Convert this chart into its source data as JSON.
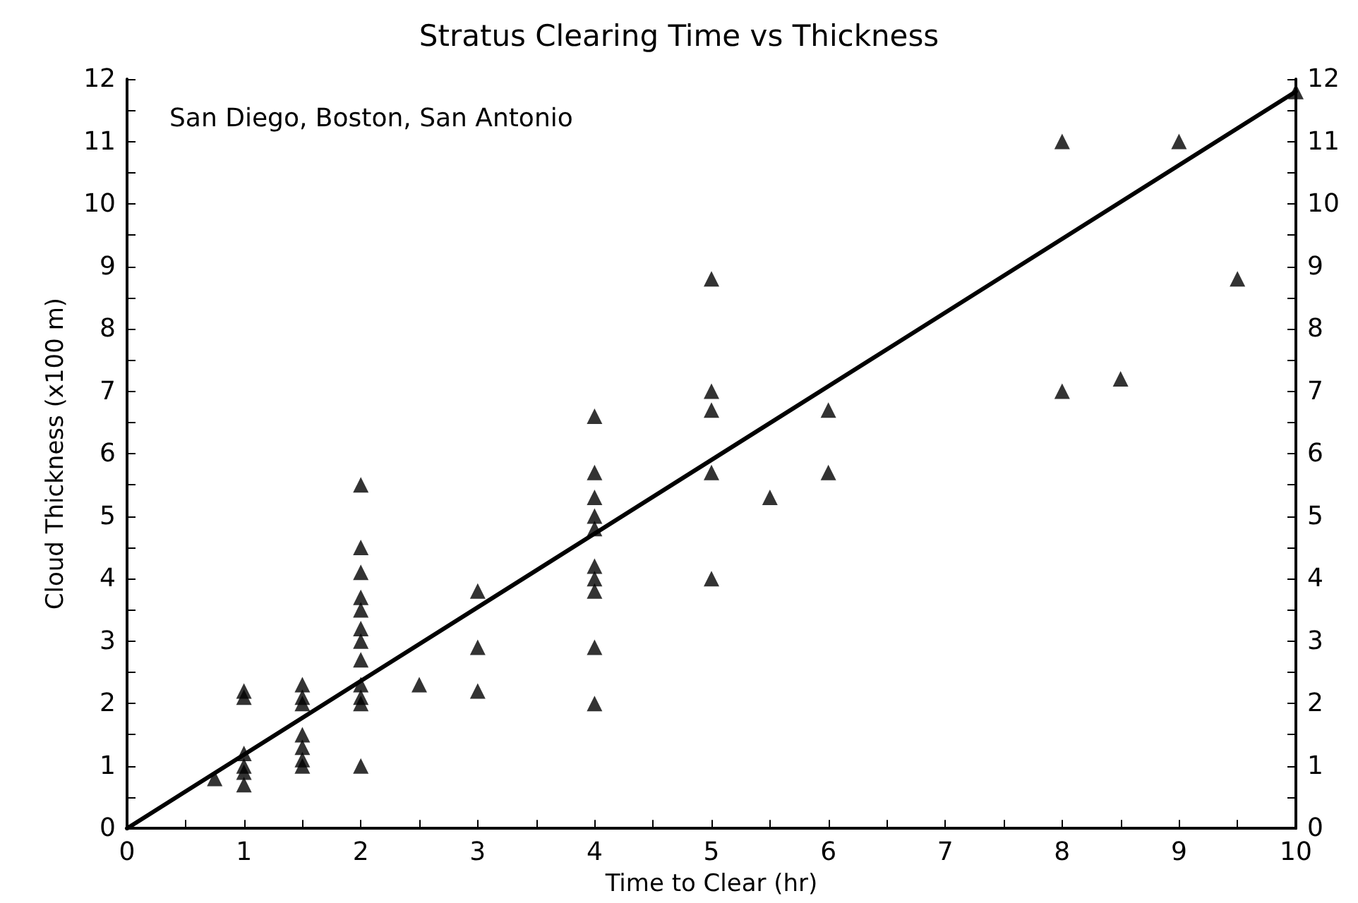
{
  "chart_data": {
    "type": "scatter",
    "title": "Stratus Clearing Time vs Thickness",
    "xlabel": "Time to Clear (hr)",
    "ylabel": "Cloud Thickness (x100 m)",
    "annotations": [
      "San Diego, Boston, San Antonio"
    ],
    "series": [
      {
        "color": "#000000",
        "marker": "triangle",
        "x": [
          0.75,
          1,
          1,
          1,
          1,
          1,
          1,
          1.5,
          1.5,
          1.5,
          1.5,
          1.5,
          1.5,
          1.5,
          2,
          2,
          2,
          2,
          2,
          2,
          2,
          2,
          2,
          2,
          2,
          2,
          2.5,
          3,
          3,
          3,
          4,
          4,
          4,
          4,
          4,
          4,
          4,
          4,
          4,
          4,
          5,
          5,
          5,
          5,
          5,
          5.5,
          6,
          6,
          8,
          8,
          8.5,
          9,
          9.5,
          10
        ],
        "values": [
          0.8,
          2.2,
          2.1,
          1.2,
          1.0,
          0.9,
          0.7,
          2.3,
          2.1,
          2.0,
          1.5,
          1.3,
          1.1,
          1.0,
          5.5,
          4.5,
          4.1,
          3.7,
          3.5,
          3.2,
          3.0,
          2.7,
          2.3,
          2.1,
          2.0,
          1.0,
          2.3,
          3.8,
          2.9,
          2.2,
          6.6,
          5.7,
          5.3,
          5.0,
          4.8,
          4.2,
          4.0,
          3.8,
          2.9,
          2.0,
          8.8,
          7.0,
          6.7,
          5.7,
          4.0,
          5.3,
          6.7,
          5.7,
          11.0,
          7.0,
          7.2,
          11.0,
          8.8,
          11.8
        ]
      },
      {
        "type": "line",
        "color": "#000000",
        "marker": "none",
        "line_style": "solid",
        "x": [
          0,
          10
        ],
        "values": [
          0,
          11.8
        ]
      }
    ],
    "xlim": [
      0,
      10
    ],
    "xticks": [
      0,
      {
        "value": 0.5,
        "label": null
      },
      1,
      {
        "value": 1.5,
        "label": null
      },
      2,
      {
        "value": 2.5,
        "label": null
      },
      3,
      {
        "value": 3.5,
        "label": null
      },
      4,
      {
        "value": 4.5,
        "label": null
      },
      5,
      {
        "value": 5.5,
        "label": null
      },
      6,
      {
        "value": 6.5,
        "label": null
      },
      7,
      {
        "value": 7.5,
        "label": null
      },
      8,
      {
        "value": 8.5,
        "label": null
      },
      9,
      {
        "value": 9.5,
        "label": null
      },
      10
    ],
    "ylim": [
      0,
      12
    ],
    "yticks": [
      0,
      {
        "value": 0.5,
        "label": null
      },
      1,
      {
        "value": 1.5,
        "label": null
      },
      2,
      {
        "value": 2.5,
        "label": null
      },
      3,
      {
        "value": 3.5,
        "label": null
      },
      4,
      {
        "value": 4.5,
        "label": null
      },
      5,
      {
        "value": 5.5,
        "label": null
      },
      6,
      {
        "value": 6.5,
        "label": null
      },
      7,
      {
        "value": 7.5,
        "label": null
      },
      8,
      {
        "value": 8.5,
        "label": null
      },
      9,
      {
        "value": 9.5,
        "label": null
      },
      10,
      {
        "value": 10.5,
        "label": null
      },
      11,
      {
        "value": 11.5,
        "label": null
      },
      12
    ],
    "y2lim": [
      0,
      12
    ],
    "y2ticks": [
      0,
      {
        "value": 0.5,
        "label": null
      },
      1,
      {
        "value": 1.5,
        "label": null
      },
      2,
      {
        "value": 2.5,
        "label": null
      },
      3,
      {
        "value": 3.5,
        "label": null
      },
      4,
      {
        "value": 4.5,
        "label": null
      },
      5,
      {
        "value": 5.5,
        "label": null
      },
      6,
      {
        "value": 6.5,
        "label": null
      },
      7,
      {
        "value": 7.5,
        "label": null
      },
      8,
      {
        "value": 8.5,
        "label": null
      },
      9,
      {
        "value": 9.5,
        "label": null
      },
      10,
      {
        "value": 10.5,
        "label": null
      },
      11,
      {
        "value": 11.5,
        "label": null
      },
      12
    ],
    "grid": false
  }
}
